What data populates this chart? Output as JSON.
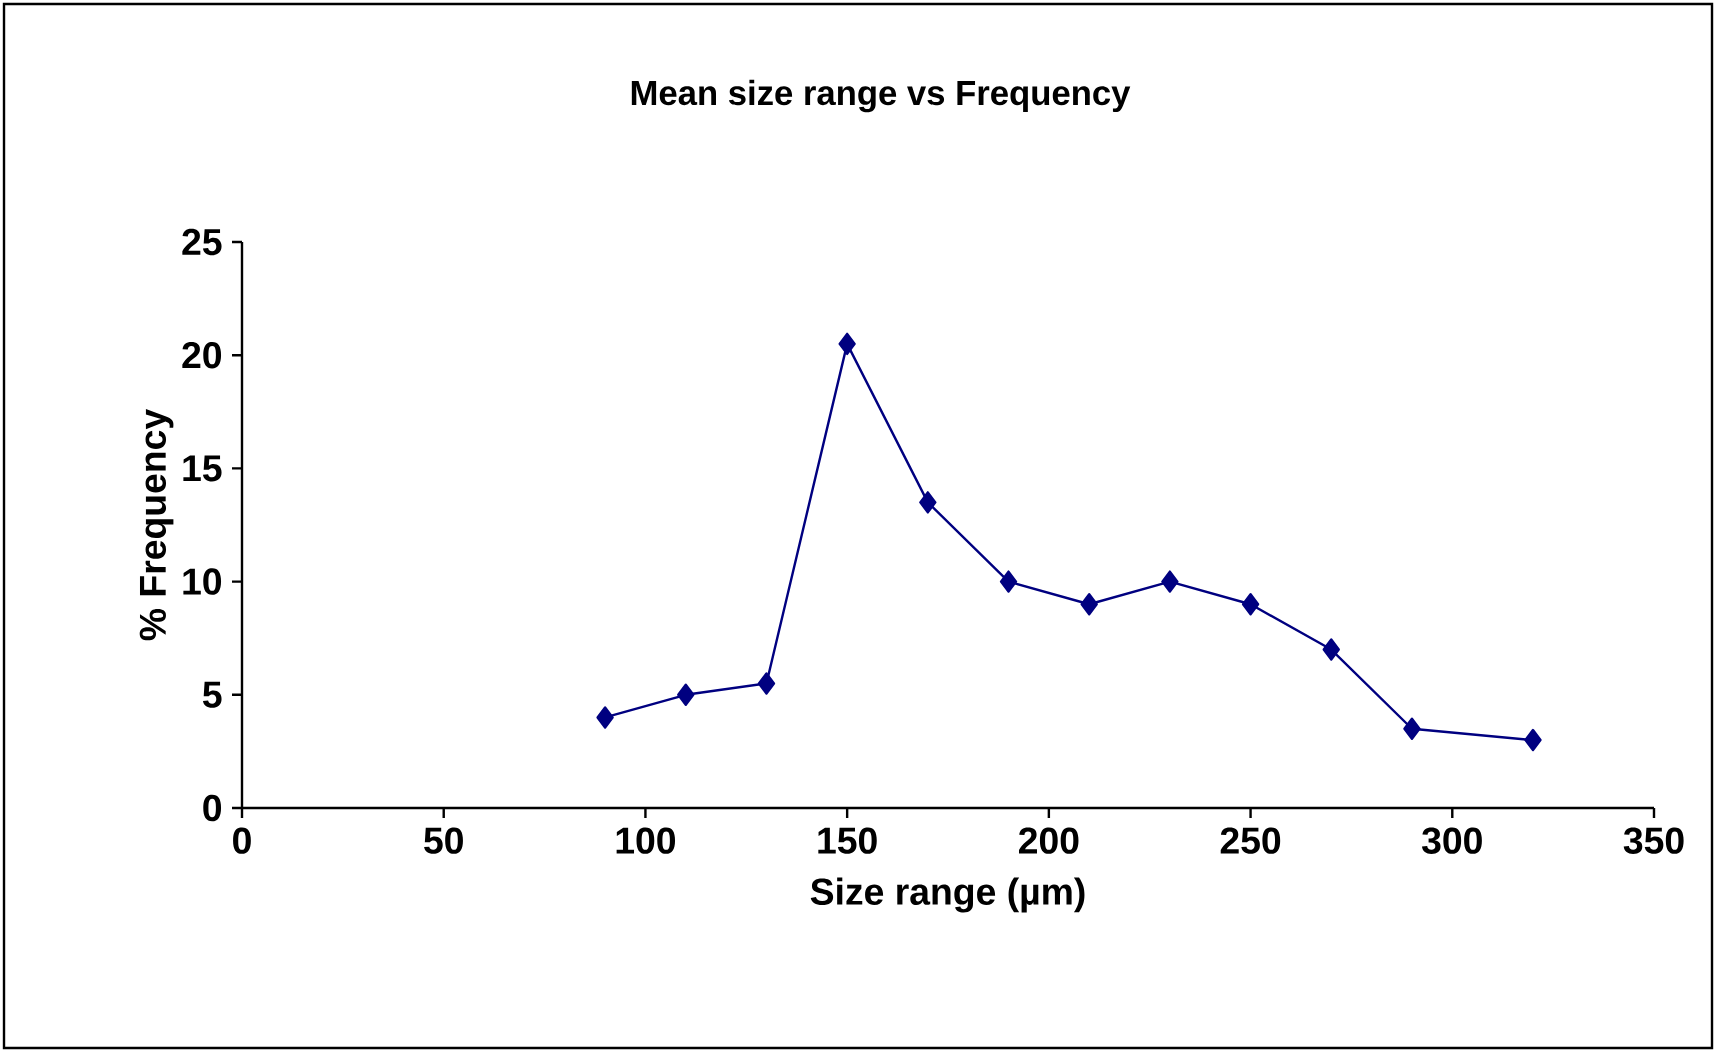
{
  "chart_data": {
    "type": "line",
    "title": "Mean size range vs Frequency",
    "xlabel": "Size range (µm)",
    "ylabel": "% Frequency",
    "x": [
      90,
      110,
      130,
      150,
      170,
      190,
      210,
      230,
      250,
      270,
      290,
      320
    ],
    "series": [
      {
        "color": "#000080",
        "values": [
          4,
          5,
          5.5,
          20.5,
          13.5,
          10,
          9,
          10,
          9,
          7,
          3.5,
          3
        ]
      }
    ],
    "xlim": [
      0,
      350
    ],
    "xticks": [
      0,
      50,
      100,
      150,
      200,
      250,
      300,
      350
    ],
    "ylim": [
      0,
      25
    ],
    "yticks": [
      0,
      5,
      10,
      15,
      20,
      25
    ],
    "marker": "diamond",
    "line_style": "solid"
  }
}
